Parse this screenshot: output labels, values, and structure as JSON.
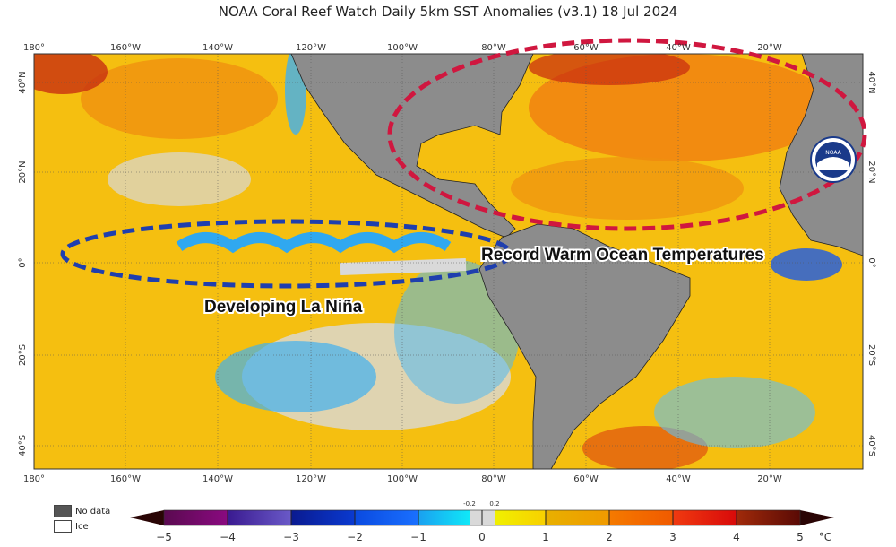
{
  "title": "NOAA Coral Reef Watch Daily 5km SST Anomalies  (v3.1)   18 Jul 2024",
  "map": {
    "lon_labels": [
      "180°",
      "160°W",
      "140°W",
      "120°W",
      "100°W",
      "80°W",
      "60°W",
      "40°W",
      "20°W"
    ],
    "lat_labels_left": [
      "40°N",
      "20°N",
      "0°",
      "20°S",
      "40°S"
    ],
    "lat_labels_right": [
      "40°N",
      "20°N",
      "0°",
      "20°S",
      "40°S"
    ],
    "annotations": {
      "la_nina": "Developing La Niña",
      "warm": "Record Warm Ocean Temperatures"
    },
    "ellipse_colors": {
      "la_nina": "#1f3fae",
      "warm": "#d0173f"
    },
    "logo": "NOAA",
    "land_color": "#8c8c8c"
  },
  "legend": {
    "no_data": "No data",
    "ice": "Ice"
  },
  "colorbar": {
    "ticks": [
      "−5",
      "−4",
      "−3",
      "−2",
      "−1",
      "0",
      "1",
      "2",
      "3",
      "4",
      "5"
    ],
    "minor_ticks": [
      "-0.2",
      "0.2"
    ],
    "unit": "°C",
    "colors": [
      "#7a0a6e",
      "#4b2fa8",
      "#0a1ea8",
      "#0a5cf5",
      "#19c8f5",
      "#d9d9d9",
      "#f2d800",
      "#f0a500",
      "#f56a00",
      "#e82010",
      "#7a1205"
    ]
  }
}
